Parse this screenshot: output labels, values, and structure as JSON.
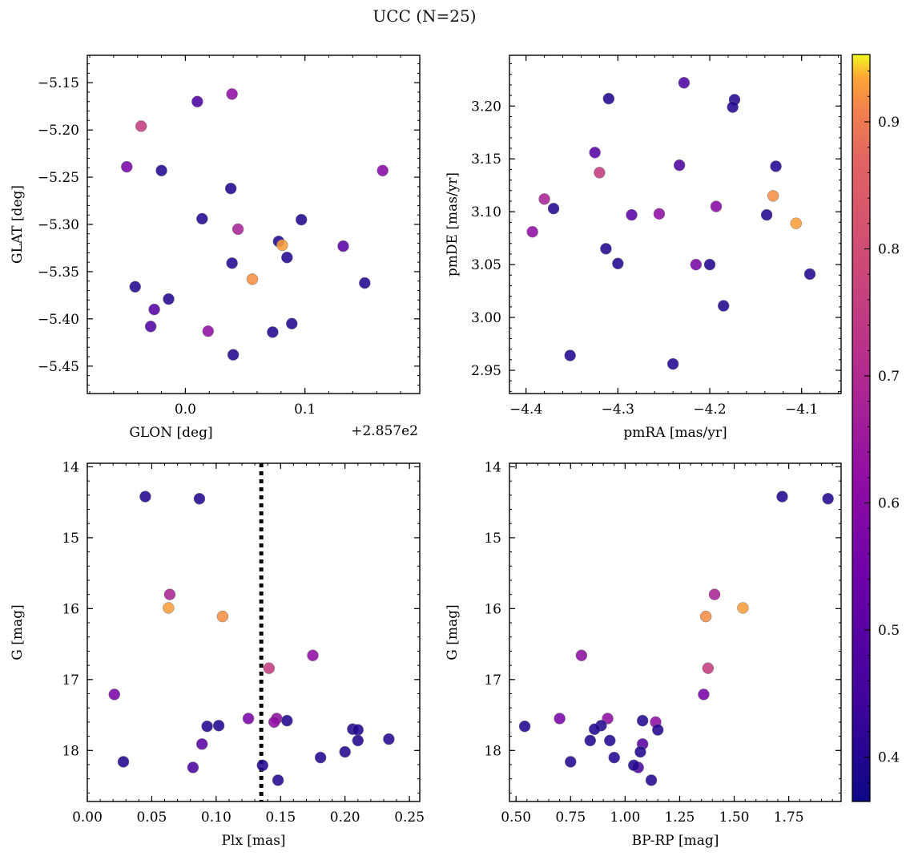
{
  "figure": {
    "title": "UCC (N=25)"
  },
  "colorbar": {
    "cmap": "plasma",
    "vmin": 0.365,
    "vmax": 0.953,
    "ticks": [
      0.4,
      0.5,
      0.6,
      0.7,
      0.8,
      0.9
    ],
    "tick_labels": [
      "0.4",
      "0.5",
      "0.6",
      "0.7",
      "0.8",
      "0.9"
    ]
  },
  "chart_data": [
    {
      "id": "glon-glat",
      "type": "scatter",
      "xlabel": "GLON [deg]",
      "ylabel": "GLAT [deg]",
      "x_offset_label": "+2.857e2",
      "xlim": [
        -0.082,
        0.196
      ],
      "ylim": [
        -5.479,
        -5.121
      ],
      "xticks": [
        0.0,
        0.1
      ],
      "xtick_labels": [
        "0.0",
        "0.1"
      ],
      "yticks": [
        -5.15,
        -5.2,
        -5.25,
        -5.3,
        -5.35,
        -5.4,
        -5.45
      ],
      "ytick_labels": [
        "−5.15",
        "−5.20",
        "−5.25",
        "−5.30",
        "−5.35",
        "−5.40",
        "−5.45"
      ],
      "x": [
        0.039,
        0.01,
        -0.037,
        -0.049,
        -0.02,
        0.038,
        0.014,
        0.044,
        0.078,
        0.081,
        0.097,
        0.132,
        0.165,
        0.085,
        0.039,
        0.056,
        -0.042,
        -0.014,
        -0.026,
        -0.029,
        0.019,
        0.073,
        0.089,
        0.04,
        0.15
      ],
      "y": [
        -5.162,
        -5.17,
        -5.196,
        -5.239,
        -5.243,
        -5.262,
        -5.294,
        -5.305,
        -5.318,
        -5.322,
        -5.295,
        -5.323,
        -5.243,
        -5.335,
        -5.341,
        -5.358,
        -5.366,
        -5.379,
        -5.39,
        -5.408,
        -5.413,
        -5.414,
        -5.405,
        -5.438,
        -5.362
      ],
      "c": [
        0.62,
        0.47,
        0.75,
        0.57,
        0.4,
        0.4,
        0.4,
        0.68,
        0.4,
        0.93,
        0.4,
        0.5,
        0.6,
        0.4,
        0.4,
        0.92,
        0.4,
        0.4,
        0.5,
        0.48,
        0.62,
        0.4,
        0.4,
        0.4,
        0.4
      ]
    },
    {
      "id": "pmra-pmde",
      "type": "scatter",
      "xlabel": "pmRA [mas/yr]",
      "ylabel": "pmDE [mas/yr]",
      "xlim": [
        -4.418,
        -4.057
      ],
      "ylim": [
        2.928,
        3.248
      ],
      "xticks": [
        -4.4,
        -4.3,
        -4.2,
        -4.1
      ],
      "xtick_labels": [
        "−4.4",
        "−4.3",
        "−4.2",
        "−4.1"
      ],
      "yticks": [
        2.95,
        3.0,
        3.05,
        3.1,
        3.15,
        3.2
      ],
      "ytick_labels": [
        "2.95",
        "3.00",
        "3.05",
        "3.10",
        "3.15",
        "3.20"
      ],
      "x": [
        -4.228,
        -4.31,
        -4.173,
        -4.175,
        -4.325,
        -4.233,
        -4.128,
        -4.32,
        -4.38,
        -4.37,
        -4.285,
        -4.255,
        -4.193,
        -4.131,
        -4.138,
        -4.106,
        -4.393,
        -4.313,
        -4.3,
        -4.215,
        -4.2,
        -4.091,
        -4.185,
        -4.352,
        -4.24
      ],
      "y": [
        3.222,
        3.207,
        3.206,
        3.199,
        3.156,
        3.144,
        3.143,
        3.137,
        3.112,
        3.103,
        3.097,
        3.098,
        3.105,
        3.115,
        3.097,
        3.089,
        3.081,
        3.065,
        3.051,
        3.05,
        3.05,
        3.041,
        3.011,
        2.964,
        2.956
      ],
      "c": [
        0.47,
        0.4,
        0.4,
        0.4,
        0.5,
        0.48,
        0.4,
        0.75,
        0.68,
        0.4,
        0.5,
        0.62,
        0.6,
        0.92,
        0.4,
        0.93,
        0.62,
        0.4,
        0.4,
        0.57,
        0.4,
        0.4,
        0.4,
        0.4,
        0.4
      ]
    },
    {
      "id": "plx-g",
      "type": "scatter",
      "xlabel": "Plx [mas]",
      "ylabel": "G [mag]",
      "invert_y": true,
      "xlim": [
        0.0,
        0.258
      ],
      "ylim": [
        13.95,
        18.72
      ],
      "xticks": [
        0.0,
        0.05,
        0.1,
        0.15,
        0.2,
        0.25
      ],
      "xtick_labels": [
        "0.00",
        "0.05",
        "0.10",
        "0.15",
        "0.20",
        "0.25"
      ],
      "yticks": [
        14,
        15,
        16,
        17,
        18
      ],
      "ytick_labels": [
        "14",
        "15",
        "16",
        "17",
        "18"
      ],
      "vline": 0.135,
      "x": [
        0.045,
        0.087,
        0.064,
        0.063,
        0.105,
        0.175,
        0.141,
        0.021,
        0.125,
        0.147,
        0.145,
        0.155,
        0.093,
        0.102,
        0.206,
        0.21,
        0.21,
        0.234,
        0.089,
        0.2,
        0.028,
        0.181,
        0.082,
        0.136,
        0.148
      ],
      "y": [
        14.42,
        14.45,
        15.8,
        15.99,
        16.11,
        16.66,
        16.84,
        17.21,
        17.55,
        17.55,
        17.6,
        17.58,
        17.66,
        17.65,
        17.7,
        17.71,
        17.86,
        17.84,
        17.91,
        18.02,
        18.16,
        18.1,
        18.24,
        18.21,
        18.42
      ],
      "c": [
        0.4,
        0.4,
        0.68,
        0.93,
        0.92,
        0.62,
        0.75,
        0.57,
        0.57,
        0.62,
        0.62,
        0.4,
        0.4,
        0.4,
        0.4,
        0.4,
        0.4,
        0.4,
        0.5,
        0.4,
        0.4,
        0.4,
        0.47,
        0.4,
        0.4
      ]
    },
    {
      "id": "bprp-g",
      "type": "scatter",
      "xlabel": "BP-RP [mag]",
      "ylabel": "G [mag]",
      "invert_y": true,
      "xlim": [
        0.47,
        1.99
      ],
      "ylim": [
        13.95,
        18.72
      ],
      "xticks": [
        0.5,
        0.75,
        1.0,
        1.25,
        1.5,
        1.75
      ],
      "xtick_labels": [
        "0.50",
        "0.75",
        "1.00",
        "1.25",
        "1.50",
        "1.75"
      ],
      "yticks": [
        14,
        15,
        16,
        17,
        18
      ],
      "ytick_labels": [
        "14",
        "15",
        "16",
        "17",
        "18"
      ],
      "x": [
        1.72,
        1.93,
        1.41,
        1.54,
        1.37,
        0.8,
        1.38,
        1.36,
        0.7,
        0.92,
        1.14,
        1.08,
        0.54,
        0.89,
        0.86,
        1.15,
        0.84,
        0.93,
        1.08,
        1.07,
        0.75,
        0.95,
        1.06,
        1.04,
        1.12
      ],
      "y": [
        14.42,
        14.45,
        15.8,
        15.99,
        16.11,
        16.66,
        16.84,
        17.21,
        17.55,
        17.55,
        17.6,
        17.58,
        17.66,
        17.65,
        17.7,
        17.71,
        17.86,
        17.86,
        17.91,
        18.02,
        18.16,
        18.1,
        18.24,
        18.21,
        18.42
      ],
      "c": [
        0.4,
        0.4,
        0.68,
        0.93,
        0.92,
        0.62,
        0.75,
        0.57,
        0.57,
        0.62,
        0.62,
        0.4,
        0.4,
        0.4,
        0.4,
        0.4,
        0.4,
        0.4,
        0.5,
        0.4,
        0.4,
        0.4,
        0.47,
        0.4,
        0.4
      ]
    }
  ]
}
